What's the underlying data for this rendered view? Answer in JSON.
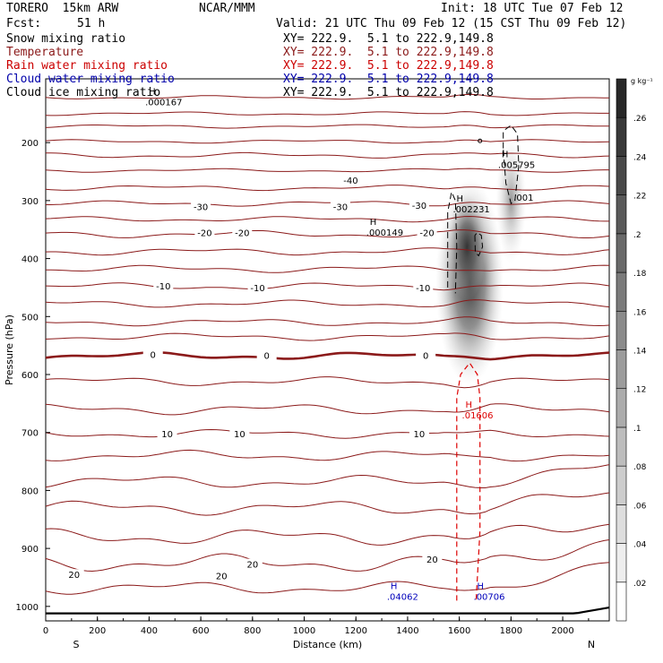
{
  "header": {
    "model": "TORERO  15km ARW",
    "org": "NCAR/MMM",
    "init": "Init: 18 UTC Tue 07 Feb 12",
    "fcst_label": "Fcst:",
    "fcst_value": "51 h",
    "valid": "Valid: 21 UTC Thu 09 Feb 12 (15 CST Thu 09 Feb 12)"
  },
  "legend": [
    {
      "label": "Snow mixing ratio",
      "xy": "XY= 222.9.  5.1 to 222.9,149.8",
      "color": "#000000"
    },
    {
      "label": "Temperature",
      "xy": "XY= 222.9.  5.1 to 222.9,149.8",
      "color": "#8b1a1a"
    },
    {
      "label": "Rain water mixing ratio",
      "xy": "XY= 222.9.  5.1 to 222.9,149.8",
      "color": "#cc0000"
    },
    {
      "label": "Cloud water mixing ratio",
      "xy": "XY= 222.9.  5.1 to 222.9,149.8",
      "color": "#0000aa"
    },
    {
      "label": "Cloud ice mixing ratio",
      "xy": "XY= 222.9.  5.1 to 222.9,149.8",
      "color": "#000000"
    }
  ],
  "colors": {
    "temperature": "#8b1a1a",
    "rain": "#dd0000",
    "cloud_water": "#0000bb",
    "cloud_ice": "#000000",
    "snow_shading": "#404040"
  },
  "chart_data": {
    "type": "heatmap",
    "xlabel": "Distance (km)",
    "ylabel": "Pressure (hPa)",
    "x_ticks": [
      0,
      200,
      400,
      600,
      800,
      1000,
      1200,
      1400,
      1600,
      1800,
      2000
    ],
    "x_tick_labels": [
      "0",
      "200",
      "400",
      "600",
      "800",
      "1000",
      "1200",
      "1400",
      "1600",
      "1800",
      "2000"
    ],
    "xlim": [
      0,
      2180
    ],
    "y_ticks": [
      200,
      300,
      400,
      500,
      600,
      700,
      800,
      900,
      1000
    ],
    "y_tick_labels": [
      "200",
      "300",
      "400",
      "500",
      "600",
      "700",
      "800",
      "900",
      "1000"
    ],
    "ylim": [
      90,
      1025
    ],
    "y_scale": "linear-inverted",
    "x_end_labels": {
      "left": "S",
      "right": "N"
    },
    "colorbar": {
      "unit": "g kg⁻¹",
      "ticks": [
        0.02,
        0.04,
        0.06,
        0.08,
        0.1,
        0.12,
        0.14,
        0.16,
        0.18,
        0.2,
        0.22,
        0.24,
        0.26
      ],
      "tick_labels": [
        ".02",
        ".04",
        ".06",
        ".08",
        ".1",
        ".12",
        ".14",
        ".16",
        ".18",
        ".2",
        ".22",
        ".24",
        ".26"
      ],
      "range": [
        0,
        0.28
      ]
    },
    "temperature_labels": [
      {
        "text": "-40",
        "x": 1180,
        "p": 265
      },
      {
        "text": "-30",
        "x": 600,
        "p": 310
      },
      {
        "text": "-30",
        "x": 1140,
        "p": 310
      },
      {
        "text": "-30",
        "x": 1445,
        "p": 308
      },
      {
        "text": "-20",
        "x": 615,
        "p": 355
      },
      {
        "text": "-20",
        "x": 760,
        "p": 355
      },
      {
        "text": "-20",
        "x": 1475,
        "p": 355
      },
      {
        "text": "-10",
        "x": 455,
        "p": 447
      },
      {
        "text": "-10",
        "x": 820,
        "p": 450
      },
      {
        "text": "-10",
        "x": 1460,
        "p": 450
      },
      {
        "text": "0",
        "x": 415,
        "p": 565
      },
      {
        "text": "0",
        "x": 855,
        "p": 567
      },
      {
        "text": "0",
        "x": 1470,
        "p": 567
      },
      {
        "text": "10",
        "x": 470,
        "p": 702
      },
      {
        "text": "10",
        "x": 750,
        "p": 702
      },
      {
        "text": "10",
        "x": 1445,
        "p": 702
      },
      {
        "text": "20",
        "x": 110,
        "p": 945
      },
      {
        "text": "20",
        "x": 680,
        "p": 947
      },
      {
        "text": "20",
        "x": 800,
        "p": 927
      },
      {
        "text": "20",
        "x": 1495,
        "p": 918
      }
    ],
    "maxima": [
      {
        "label": "H",
        "value": ".000167",
        "x": 385,
        "p": 120,
        "field": "snow"
      },
      {
        "label": "H",
        "value": ".000149",
        "x": 1240,
        "p": 345,
        "field": "snow"
      },
      {
        "label": "H",
        "value": ".002231",
        "x": 1575,
        "p": 305,
        "field": "cloud_ice"
      },
      {
        "label": "H",
        "value": ".005795",
        "x": 1750,
        "p": 228,
        "field": "cloud_ice"
      },
      {
        "label": "",
        "value": ".001",
        "x": 1810,
        "p": 285,
        "field": "cloud_ice"
      },
      {
        "label": "H",
        "value": ".01606",
        "x": 1610,
        "p": 660,
        "field": "rain"
      },
      {
        "label": "H",
        "value": ".04062",
        "x": 1320,
        "p": 973,
        "field": "cloud_water"
      },
      {
        "label": "H",
        "value": ".00706",
        "x": 1655,
        "p": 973,
        "field": "cloud_water"
      }
    ],
    "grid": false
  }
}
